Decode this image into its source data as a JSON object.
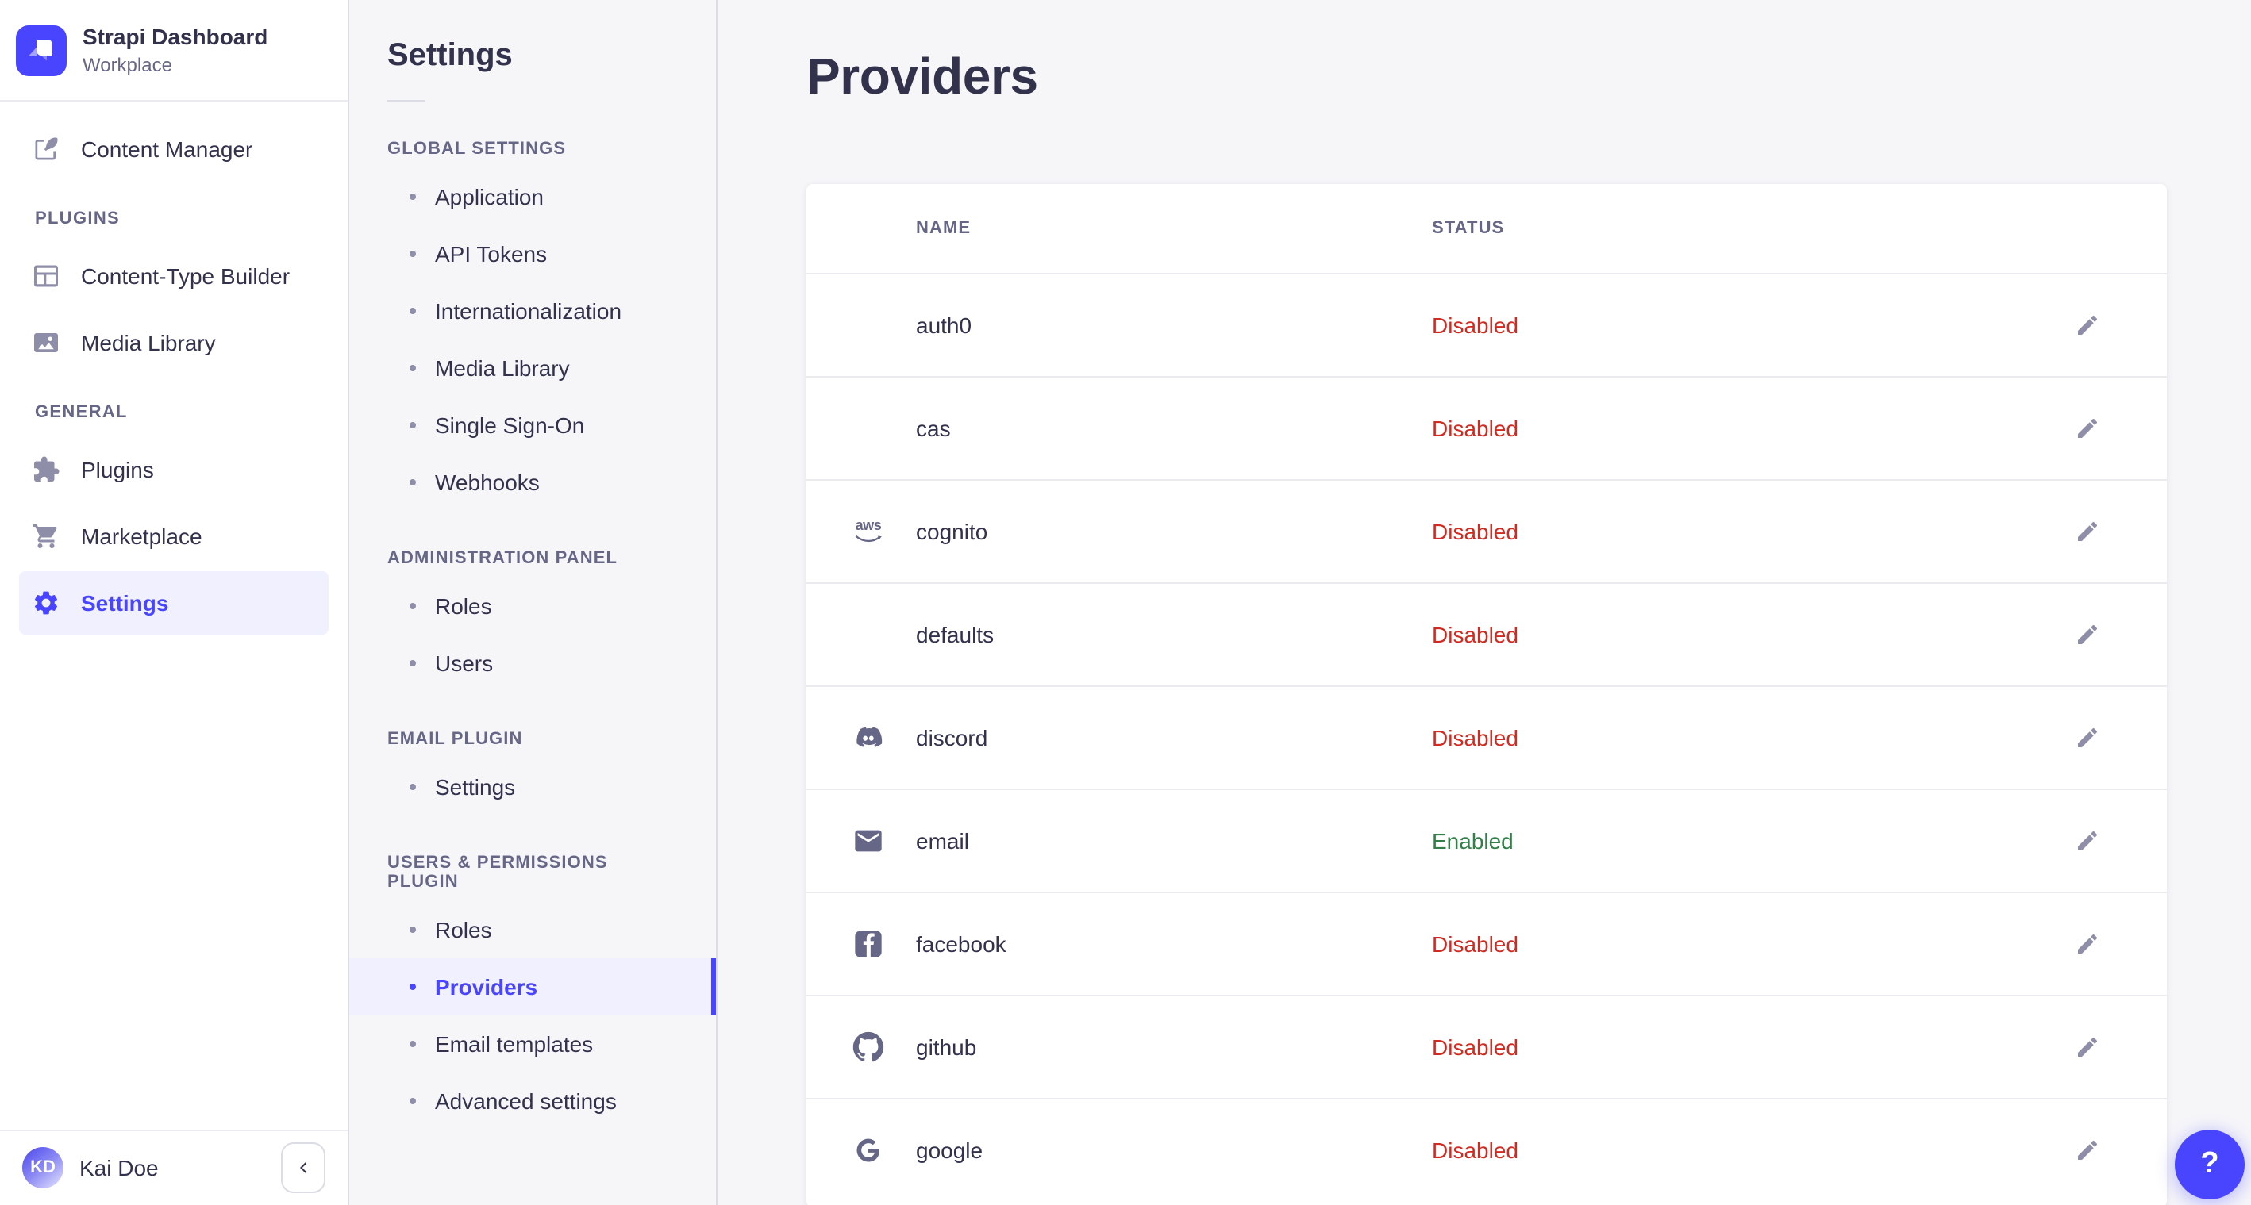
{
  "brand": {
    "title": "Strapi Dashboard",
    "subtitle": "Workplace"
  },
  "nav": {
    "sections": [
      {
        "label": "",
        "items": [
          {
            "label": "Content Manager",
            "icon": "pen"
          }
        ]
      },
      {
        "label": "PLUGINS",
        "items": [
          {
            "label": "Content-Type Builder",
            "icon": "layout"
          },
          {
            "label": "Media Library",
            "icon": "image"
          }
        ]
      },
      {
        "label": "GENERAL",
        "items": [
          {
            "label": "Plugins",
            "icon": "puzzle"
          },
          {
            "label": "Marketplace",
            "icon": "cart"
          },
          {
            "label": "Settings",
            "icon": "gear",
            "active": true
          }
        ]
      }
    ],
    "user": {
      "initials": "KD",
      "name": "Kai Doe"
    }
  },
  "subnav": {
    "title": "Settings",
    "sections": [
      {
        "label": "GLOBAL SETTINGS",
        "items": [
          {
            "label": "Application"
          },
          {
            "label": "API Tokens"
          },
          {
            "label": "Internationalization"
          },
          {
            "label": "Media Library"
          },
          {
            "label": "Single Sign-On"
          },
          {
            "label": "Webhooks"
          }
        ]
      },
      {
        "label": "ADMINISTRATION PANEL",
        "items": [
          {
            "label": "Roles"
          },
          {
            "label": "Users"
          }
        ]
      },
      {
        "label": "EMAIL PLUGIN",
        "items": [
          {
            "label": "Settings"
          }
        ]
      },
      {
        "label": "USERS & PERMISSIONS PLUGIN",
        "items": [
          {
            "label": "Roles"
          },
          {
            "label": "Providers",
            "active": true
          },
          {
            "label": "Email templates"
          },
          {
            "label": "Advanced settings"
          }
        ]
      }
    ]
  },
  "main": {
    "title": "Providers",
    "table": {
      "columns": [
        "NAME",
        "STATUS"
      ],
      "aws_text": "aws",
      "rows": [
        {
          "name": "auth0",
          "icon": null,
          "status": "Disabled"
        },
        {
          "name": "cas",
          "icon": null,
          "status": "Disabled"
        },
        {
          "name": "cognito",
          "icon": "aws",
          "status": "Disabled"
        },
        {
          "name": "defaults",
          "icon": null,
          "status": "Disabled"
        },
        {
          "name": "discord",
          "icon": "discord",
          "status": "Disabled"
        },
        {
          "name": "email",
          "icon": "envelope",
          "status": "Enabled"
        },
        {
          "name": "facebook",
          "icon": "facebook",
          "status": "Disabled"
        },
        {
          "name": "github",
          "icon": "github",
          "status": "Disabled"
        },
        {
          "name": "google",
          "icon": "google",
          "status": "Disabled"
        }
      ]
    }
  },
  "help": {
    "label": "?"
  },
  "colors": {
    "accent": "#4945ff",
    "accent_bg": "#f0f0ff",
    "danger": "#d02b20",
    "success": "#328048",
    "icon_gray": "#666687"
  }
}
